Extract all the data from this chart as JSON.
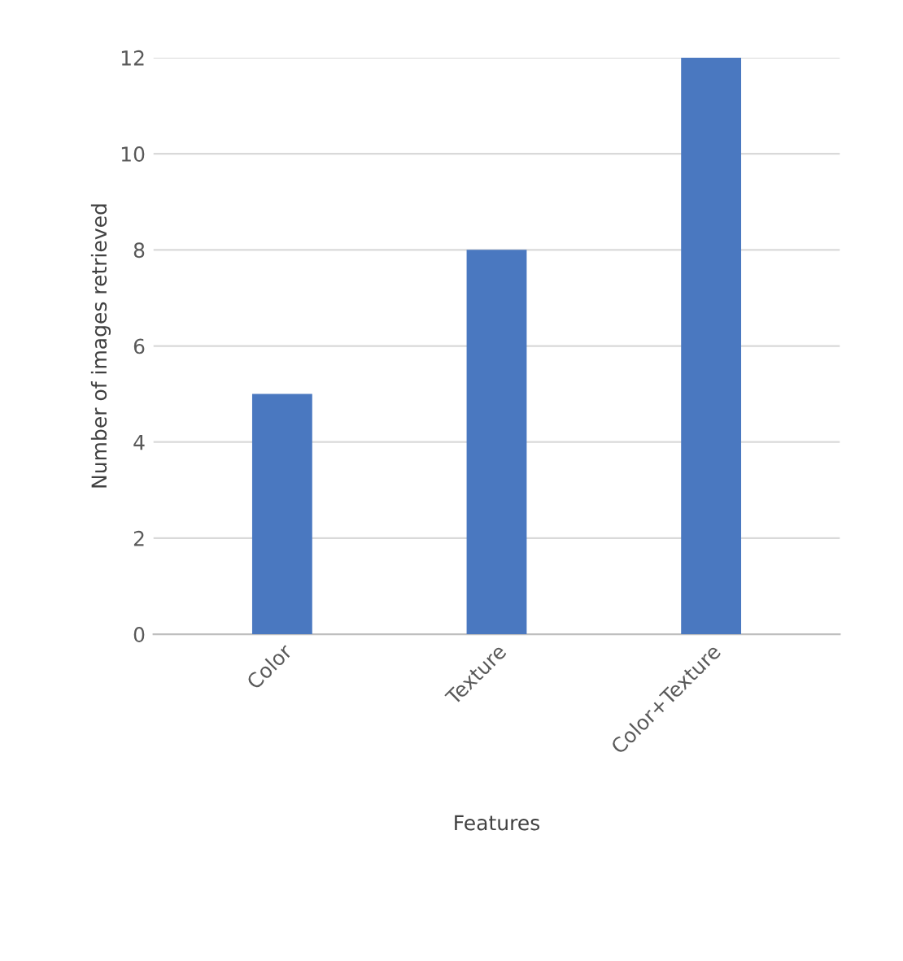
{
  "chart_data": {
    "type": "bar",
    "xlabel": "Features",
    "ylabel": "Number of images retrieved",
    "categories": [
      "Color",
      "Texture",
      "Color+Texture"
    ],
    "values": [
      5,
      8,
      12
    ],
    "color": "#4a78c0",
    "ylim": [
      0,
      12
    ],
    "yticks": [
      0,
      2,
      4,
      6,
      8,
      10,
      12
    ],
    "grid": "y"
  }
}
